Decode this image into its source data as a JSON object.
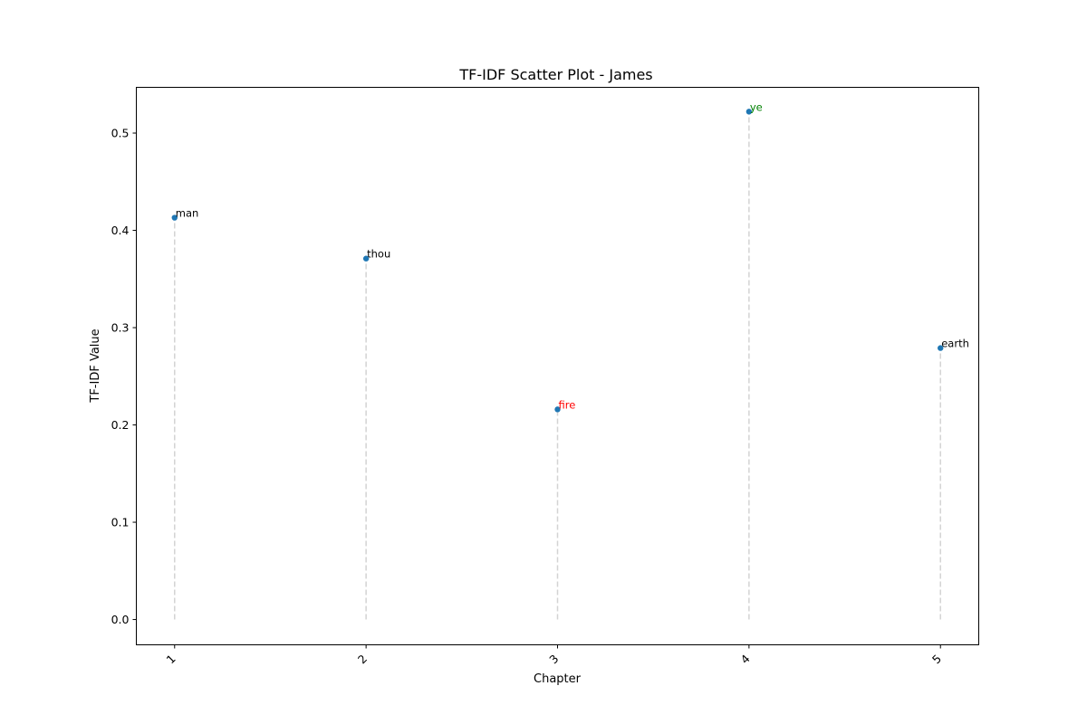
{
  "chart_data": {
    "type": "scatter",
    "title": "TF-IDF Scatter Plot - James",
    "xlabel": "Chapter",
    "ylabel": "TF-IDF Value",
    "x_ticks": [
      "1",
      "2",
      "3",
      "4",
      "5"
    ],
    "x_tick_rotation": 45,
    "xlim": [
      0.8,
      5.2
    ],
    "ylim": [
      -0.026,
      0.547
    ],
    "y_ticks": [
      "0.0",
      "0.1",
      "0.2",
      "0.3",
      "0.4",
      "0.5"
    ],
    "grid": false,
    "stems": true,
    "stem_style": "dashed",
    "point_color": "#1f77b4",
    "stem_color": "#d3d3d3",
    "points": [
      {
        "chapter": 1,
        "value": 0.413,
        "word": "man",
        "label_color": "#000000"
      },
      {
        "chapter": 2,
        "value": 0.371,
        "word": "thou",
        "label_color": "#000000"
      },
      {
        "chapter": 3,
        "value": 0.216,
        "word": "fire",
        "label_color": "#ff0000"
      },
      {
        "chapter": 4,
        "value": 0.522,
        "word": "ye",
        "label_color": "#008000"
      },
      {
        "chapter": 5,
        "value": 0.279,
        "word": "earth",
        "label_color": "#000000"
      }
    ]
  }
}
